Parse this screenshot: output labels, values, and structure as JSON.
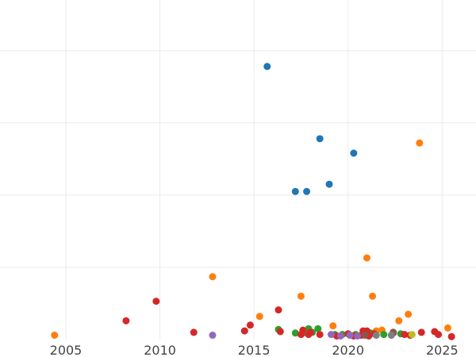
{
  "chart_data": {
    "type": "scatter",
    "title": "",
    "xlabel": "",
    "ylabel": "",
    "xlim": [
      2001.5,
      2026.8
    ],
    "ylim": [
      0,
      4.7
    ],
    "xticks": [
      2005,
      2010,
      2015,
      2020,
      2025
    ],
    "yticks": [
      1,
      2,
      3,
      4
    ],
    "xtick_labels": [
      "2005",
      "2010",
      "2015",
      "2020",
      "2025"
    ],
    "grid": true,
    "legend": "none",
    "series": [
      {
        "color": "#1f77b4",
        "points": [
          [
            2015.7,
            3.78
          ],
          [
            2018.5,
            2.78
          ],
          [
            2020.3,
            2.58
          ],
          [
            2017.2,
            2.05
          ],
          [
            2017.8,
            2.05
          ],
          [
            2019.0,
            2.15
          ]
        ]
      },
      {
        "color": "#ff7f0e",
        "points": [
          [
            2004.4,
            0.06
          ],
          [
            2012.8,
            0.87
          ],
          [
            2015.3,
            0.32
          ],
          [
            2017.5,
            0.6
          ],
          [
            2019.2,
            0.19
          ],
          [
            2021.0,
            1.13
          ],
          [
            2021.3,
            0.6
          ],
          [
            2021.5,
            0.12
          ],
          [
            2021.8,
            0.13
          ],
          [
            2022.7,
            0.26
          ],
          [
            2023.2,
            0.35
          ],
          [
            2023.8,
            2.72
          ],
          [
            2025.3,
            0.16
          ]
        ]
      },
      {
        "color": "#2ca02c",
        "points": [
          [
            2016.3,
            0.14
          ],
          [
            2017.2,
            0.09
          ],
          [
            2017.6,
            0.09
          ],
          [
            2017.9,
            0.15
          ],
          [
            2018.1,
            0.1
          ],
          [
            2018.4,
            0.15
          ],
          [
            2019.3,
            0.07
          ],
          [
            2019.7,
            0.07
          ],
          [
            2020.4,
            0.07
          ],
          [
            2021.2,
            0.09
          ],
          [
            2021.9,
            0.07
          ],
          [
            2022.4,
            0.1
          ],
          [
            2022.8,
            0.08
          ]
        ]
      },
      {
        "color": "#d62728",
        "points": [
          [
            2008.2,
            0.26
          ],
          [
            2009.8,
            0.53
          ],
          [
            2011.8,
            0.1
          ],
          [
            2014.5,
            0.12
          ],
          [
            2014.8,
            0.2
          ],
          [
            2016.3,
            0.41
          ],
          [
            2016.4,
            0.11
          ],
          [
            2017.5,
            0.07
          ],
          [
            2017.6,
            0.13
          ],
          [
            2017.9,
            0.07
          ],
          [
            2018.0,
            0.1
          ],
          [
            2018.5,
            0.07
          ],
          [
            2019.4,
            0.05
          ],
          [
            2020.0,
            0.08
          ],
          [
            2020.3,
            0.05
          ],
          [
            2020.7,
            0.06
          ],
          [
            2020.8,
            0.12
          ],
          [
            2021.0,
            0.12
          ],
          [
            2021.1,
            0.05
          ],
          [
            2021.4,
            0.08
          ],
          [
            2022.4,
            0.09
          ],
          [
            2023.0,
            0.07
          ],
          [
            2023.3,
            0.06
          ],
          [
            2023.9,
            0.1
          ],
          [
            2024.6,
            0.11
          ],
          [
            2024.8,
            0.07
          ],
          [
            2025.5,
            0.04
          ]
        ]
      },
      {
        "color": "#9467bd",
        "points": [
          [
            2012.8,
            0.06
          ],
          [
            2019.1,
            0.07
          ],
          [
            2019.6,
            0.05
          ],
          [
            2020.1,
            0.06
          ],
          [
            2020.5,
            0.05
          ]
        ]
      },
      {
        "color": "#8c564b",
        "points": [
          [
            2020.9,
            0.06
          ],
          [
            2022.4,
            0.1
          ]
        ]
      },
      {
        "color": "#7f7f7f",
        "points": [
          [
            2021.5,
            0.06
          ],
          [
            2022.3,
            0.06
          ]
        ]
      },
      {
        "color": "#bcbd22",
        "points": [
          [
            2023.4,
            0.07
          ]
        ]
      }
    ]
  }
}
